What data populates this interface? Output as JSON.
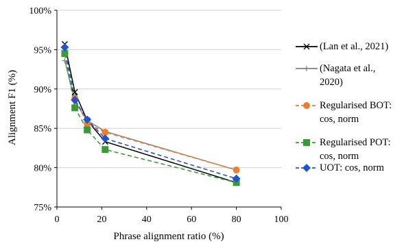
{
  "chart_data": {
    "type": "line",
    "xlabel": "Phrase alignment ratio (%)",
    "ylabel": "Alignment F1 (%)",
    "xlim": [
      0,
      100
    ],
    "ylim": [
      75,
      100
    ],
    "xticks": [
      "0",
      "20",
      "40",
      "60",
      "80",
      "100"
    ],
    "yticks": [
      "75%",
      "80%",
      "85%",
      "90%",
      "95%",
      "100%"
    ],
    "grid": "horizontal",
    "legend_position": "right",
    "series": [
      {
        "name": "(Lan et al., 2021)",
        "color": "#000000",
        "dash": "solid",
        "marker": "x",
        "x": [
          3.5,
          8,
          13.5,
          21.5,
          80
        ],
        "y": [
          95.7,
          89.6,
          86.0,
          83.3,
          78.1
        ]
      },
      {
        "name": "(Nagata et al.,\n2020)",
        "color": "#808080",
        "dash": "solid",
        "marker": "plus",
        "x": [
          3.5,
          8,
          13.5,
          21.5,
          80
        ],
        "y": [
          93.6,
          88.4,
          86.0,
          84.6,
          79.7
        ]
      },
      {
        "name": "Regularised BOT:\ncos, norm",
        "color": "#ED7D31",
        "dash": "dashed",
        "marker": "circle",
        "x": [
          3.5,
          8,
          13.5,
          21.5,
          80
        ],
        "y": [
          94.5,
          88.8,
          85.6,
          84.5,
          79.7
        ]
      },
      {
        "name": "Regularised POT:\ncos, norm",
        "color": "#3A9A3A",
        "dash": "dashed",
        "marker": "square",
        "x": [
          3.5,
          8,
          13.5,
          21.5,
          80
        ],
        "y": [
          94.5,
          87.6,
          84.8,
          82.3,
          78.1
        ]
      },
      {
        "name": "UOT: cos, norm",
        "color": "#2255CC",
        "dash": "dashed",
        "marker": "diamond",
        "x": [
          3.5,
          8,
          13.5,
          21.5,
          80
        ],
        "y": [
          95.3,
          88.6,
          86.1,
          83.7,
          78.6
        ]
      }
    ]
  }
}
